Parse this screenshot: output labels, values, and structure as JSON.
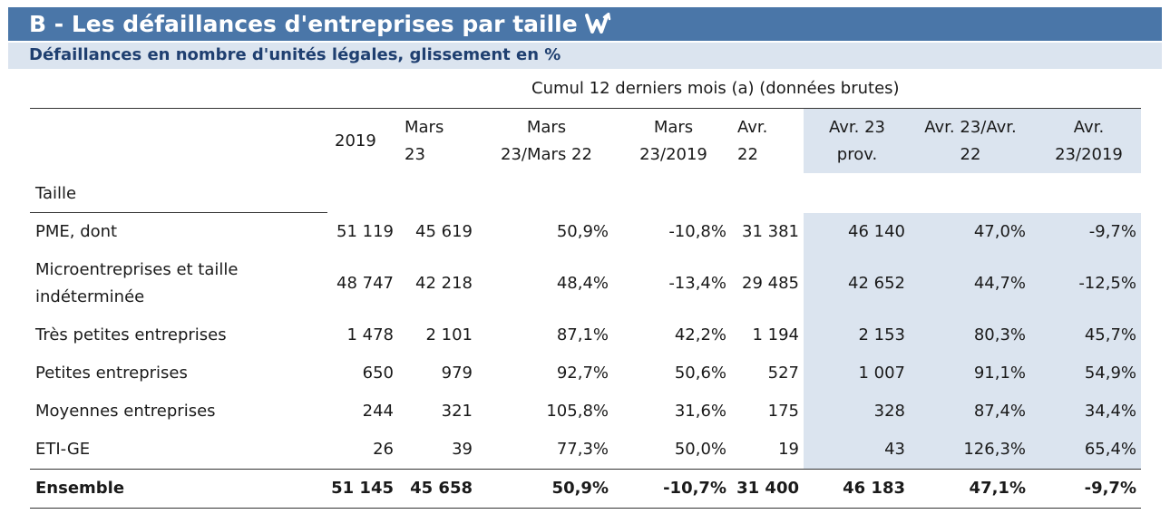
{
  "title": "B - Les défaillances d'entreprises par taille",
  "title_icon": "w-arrow-icon",
  "subtitle": "Défaillances en nombre d'unités légales, glissement en %",
  "group_header": "Cumul 12 derniers mois (a) (données brutes)",
  "colors": {
    "title_bar": "#4a76a8",
    "subtitle_bar": "#dbe4ef",
    "subtitle_text": "#1f3f70",
    "shaded_columns": "#dbe4ef"
  },
  "columns": [
    {
      "l1": "2019",
      "l2": ""
    },
    {
      "l1": "Mars",
      "l2": "23"
    },
    {
      "l1": "Mars",
      "l2": "23/Mars 22"
    },
    {
      "l1": "Mars",
      "l2": "23/2019"
    },
    {
      "l1": "Avr.",
      "l2": "22"
    },
    {
      "l1": "Avr. 23",
      "l2": "prov."
    },
    {
      "l1": "Avr. 23/Avr.",
      "l2": "22"
    },
    {
      "l1": "Avr.",
      "l2": "23/2019"
    }
  ],
  "section_label": "Taille",
  "rows": [
    {
      "label": "PME, dont",
      "label2": "",
      "values": [
        "51 119",
        "45 619",
        "50,9%",
        "-10,8%",
        "31 381",
        "46 140",
        "47,0%",
        "-9,7%"
      ]
    },
    {
      "label": "Microentreprises et taille",
      "label2": "indéterminée",
      "values": [
        "48 747",
        "42 218",
        "48,4%",
        "-13,4%",
        "29 485",
        "42 652",
        "44,7%",
        "-12,5%"
      ]
    },
    {
      "label": "Très petites entreprises",
      "label2": "",
      "values": [
        "1 478",
        "2 101",
        "87,1%",
        "42,2%",
        "1 194",
        "2 153",
        "80,3%",
        "45,7%"
      ]
    },
    {
      "label": "Petites entreprises",
      "label2": "",
      "values": [
        "650",
        "979",
        "92,7%",
        "50,6%",
        "527",
        "1 007",
        "91,1%",
        "54,9%"
      ]
    },
    {
      "label": "Moyennes entreprises",
      "label2": "",
      "values": [
        "244",
        "321",
        "105,8%",
        "31,6%",
        "175",
        "328",
        "87,4%",
        "34,4%"
      ]
    },
    {
      "label": "ETI-GE",
      "label2": "",
      "values": [
        "26",
        "39",
        "77,3%",
        "50,0%",
        "19",
        "43",
        "126,3%",
        "65,4%"
      ]
    }
  ],
  "total_row": {
    "label": "Ensemble",
    "values": [
      "51 145",
      "45 658",
      "50,9%",
      "-10,7%",
      "31 400",
      "46 183",
      "47,1%",
      "-9,7%"
    ]
  }
}
